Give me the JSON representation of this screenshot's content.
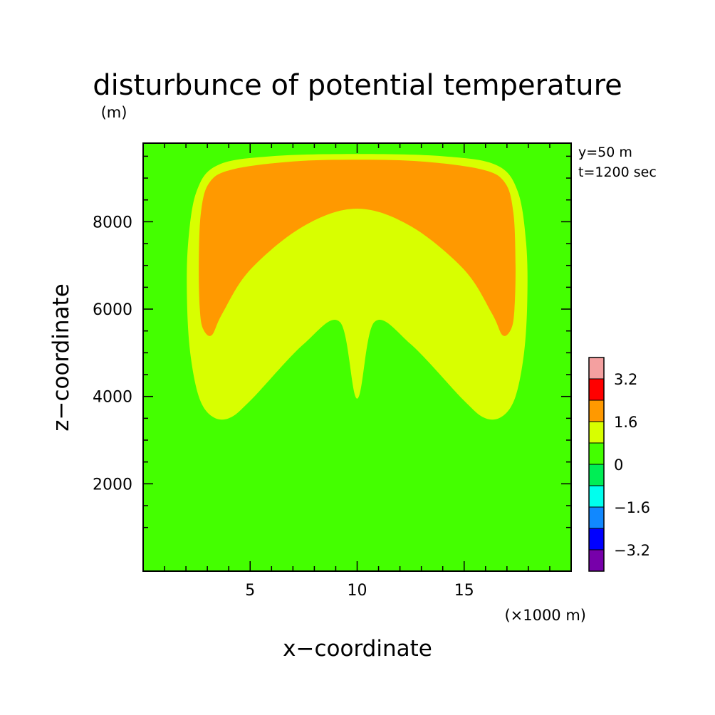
{
  "chart_data": {
    "type": "heatmap",
    "title": "disturbunce of potential temperature",
    "unit": "(m)",
    "xlabel": "x−coordinate",
    "ylabel": "z−coordinate",
    "x_unit": "(×1000 m)",
    "annotations": [
      "y=50 m",
      "t=1200 sec"
    ],
    "xlim": [
      0,
      20
    ],
    "ylim": [
      0,
      9800
    ],
    "x_ticks": [
      5,
      10,
      15
    ],
    "y_ticks": [
      2000,
      4000,
      6000,
      8000
    ],
    "grid": false,
    "colorbar": {
      "labels": [
        "3.2",
        "1.6",
        "0",
        "−1.6",
        "−3.2"
      ],
      "colors": [
        "#f4a0a0",
        "#ff0000",
        "#ff9900",
        "#d8ff00",
        "#44ff00",
        "#00ee55",
        "#00ffee",
        "#1188ff",
        "#0000ff",
        "#7700aa"
      ],
      "levels": [
        4.0,
        3.2,
        2.4,
        1.6,
        0.8,
        0.0,
        -0.8,
        -1.6,
        -2.4,
        -3.2,
        -4.0
      ]
    },
    "regions": [
      {
        "band": "0 to 0.8",
        "color": "#44ff00",
        "x": [
          0,
          20,
          20,
          0
        ],
        "y": [
          0,
          0,
          9800,
          9800
        ]
      },
      {
        "band": "0.8 to 1.6",
        "color": "#d8ff00",
        "x": [
          10.0,
          10.8,
          12.5,
          15.0,
          16.0,
          16.8,
          17.4,
          17.8,
          17.95,
          17.9,
          17.5,
          16.5,
          14.0,
          10.0,
          6.0,
          3.5,
          2.5,
          2.1,
          2.05,
          2.2,
          2.6,
          3.2,
          4.0,
          5.0,
          7.5,
          9.2,
          10.0
        ],
        "y": [
          3950,
          5700,
          5200,
          3900,
          3500,
          3550,
          4000,
          5000,
          6200,
          7500,
          8700,
          9300,
          9500,
          9550,
          9500,
          9300,
          8700,
          7500,
          6200,
          5000,
          4000,
          3550,
          3500,
          3900,
          5200,
          5700,
          3950
        ]
      },
      {
        "band": "1.6 to 2.4",
        "color": "#ff9900",
        "x": [
          10.0,
          12.5,
          15.0,
          16.3,
          16.8,
          17.2,
          17.35,
          17.4,
          17.3,
          16.9,
          15.8,
          13.0,
          10.0,
          7.0,
          4.2,
          3.1,
          2.7,
          2.6,
          2.65,
          2.8,
          3.2,
          3.7,
          5.0,
          7.5,
          10.0
        ],
        "y": [
          8300,
          7900,
          6900,
          5900,
          5400,
          5550,
          6000,
          7000,
          8200,
          8900,
          9200,
          9380,
          9420,
          9380,
          9200,
          8900,
          8200,
          7000,
          6000,
          5550,
          5400,
          5900,
          6900,
          7900,
          8300
        ]
      }
    ]
  }
}
